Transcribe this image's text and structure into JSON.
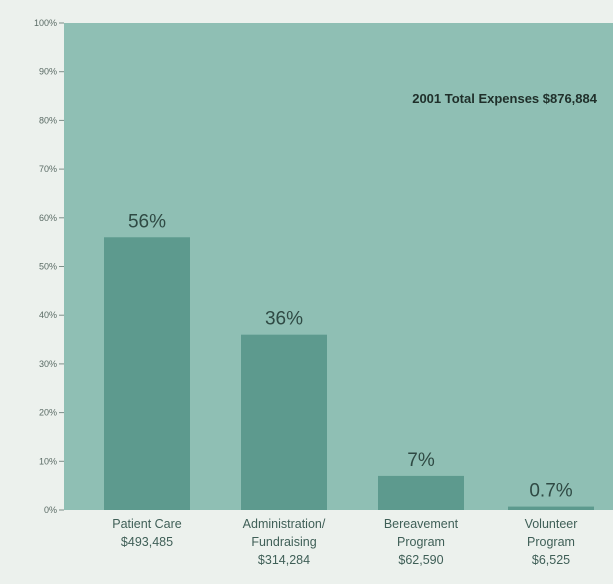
{
  "chart_data": {
    "type": "bar",
    "title": "2001 Total Expenses $876,884",
    "categories": [
      [
        "Patient Care",
        "$493,485"
      ],
      [
        "Administration/",
        "Fundraising",
        "$314,284"
      ],
      [
        "Bereavement",
        "Program",
        "$62,590"
      ],
      [
        "Volunteer",
        "Program",
        "$6,525"
      ]
    ],
    "values": [
      56,
      36,
      7,
      0.7
    ],
    "value_labels": [
      "56%",
      "36%",
      "7%",
      "0.7%"
    ],
    "ylim": [
      0,
      100
    ],
    "yticks": [
      0,
      10,
      20,
      30,
      40,
      50,
      60,
      70,
      80,
      90,
      100
    ],
    "ytick_labels": [
      "0%",
      "10%",
      "20%",
      "30%",
      "40%",
      "50%",
      "60%",
      "70%",
      "80%",
      "90%",
      "100%"
    ],
    "grid": false,
    "colors": {
      "plot_background": "#8fbfb4",
      "bar": "#5d9a8e",
      "page_background": "#ecf1ed",
      "text": "#2f4a44"
    }
  }
}
